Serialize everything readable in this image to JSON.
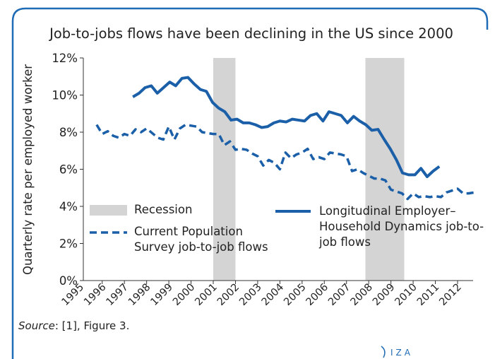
{
  "chart_data": {
    "type": "line",
    "title": "Job-to-jobs flows have been declining in the US since 2000",
    "y_label": "Quarterly rate per employed worker",
    "source_label": "Source",
    "source_text": ": [1], Figure 3.",
    "logo": "IZA",
    "xlim": [
      1995.15,
      2012.7
    ],
    "xticks": [
      1995,
      1996,
      1997,
      1998,
      1999,
      2000,
      2001,
      2002,
      2003,
      2004,
      2005,
      2006,
      2007,
      2008,
      2009,
      2010,
      2011,
      2012
    ],
    "ylim": [
      0,
      12
    ],
    "yticks": [
      {
        "value": 0,
        "label": "0%"
      },
      {
        "value": 2,
        "label": "2%"
      },
      {
        "value": 4,
        "label": "4%"
      },
      {
        "value": 6,
        "label": "6%"
      },
      {
        "value": 8,
        "label": "8%"
      },
      {
        "value": 10,
        "label": "10%"
      },
      {
        "value": 12,
        "label": "12%"
      }
    ],
    "shaded_regions": {
      "name": "Recession",
      "color": "#d4d4d4",
      "ranges": [
        [
          2001,
          2002
        ],
        [
          2007.85,
          2009.6
        ]
      ]
    },
    "series": [
      {
        "name": "Current Population Survey job-to-job flows",
        "color": "#1a5fa8",
        "dash": true,
        "x": [
          1995.75,
          1996,
          1996.25,
          1996.5,
          1996.75,
          1997,
          1997.25,
          1997.5,
          1997.75,
          1998,
          1998.25,
          1998.5,
          1998.75,
          1999,
          1999.25,
          1999.5,
          1999.75,
          2000,
          2000.25,
          2000.5,
          2000.75,
          2001,
          2001.25,
          2001.5,
          2001.75,
          2002,
          2002.25,
          2002.5,
          2002.75,
          2003,
          2003.25,
          2003.5,
          2003.75,
          2004,
          2004.25,
          2004.5,
          2004.75,
          2005,
          2005.25,
          2005.5,
          2005.75,
          2006,
          2006.25,
          2006.5,
          2006.75,
          2007,
          2007.25,
          2007.5,
          2007.75,
          2008,
          2008.25,
          2008.5,
          2008.75,
          2009,
          2009.25,
          2009.5,
          2009.75,
          2010,
          2010.25,
          2010.5,
          2010.75,
          2011,
          2011.25,
          2011.5,
          2011.75,
          2012,
          2012.25,
          2012.5,
          2012.75
        ],
        "values": [
          8.4,
          7.9,
          8.05,
          7.8,
          7.7,
          7.9,
          7.8,
          8.15,
          8.0,
          8.2,
          7.95,
          7.7,
          7.6,
          8.3,
          7.6,
          8.2,
          8.4,
          8.35,
          8.3,
          8.0,
          7.95,
          7.9,
          7.9,
          7.3,
          7.5,
          7.05,
          7.1,
          7.05,
          6.85,
          6.7,
          6.2,
          6.5,
          6.35,
          6.0,
          6.9,
          6.6,
          6.8,
          6.9,
          7.1,
          6.55,
          6.65,
          6.55,
          6.9,
          6.85,
          6.8,
          6.7,
          5.9,
          6.0,
          5.8,
          5.65,
          5.5,
          5.5,
          5.4,
          4.9,
          4.8,
          4.7,
          4.4,
          4.7,
          4.5,
          4.55,
          4.5,
          4.55,
          4.5,
          4.75,
          4.85,
          4.95,
          4.7,
          4.7,
          4.75
        ]
      },
      {
        "name": "Longitudinal Employer–Household Dynamics job-to-job flows",
        "color": "#1a5fa8",
        "dash": false,
        "x": [
          1997.38,
          1997.66,
          1997.93,
          1998.21,
          1998.48,
          1998.76,
          1999.04,
          1999.31,
          1999.59,
          1999.86,
          2000.14,
          2000.42,
          2000.69,
          2000.97,
          2001.24,
          2001.52,
          2001.8,
          2002.07,
          2002.35,
          2002.62,
          2002.9,
          2003.18,
          2003.45,
          2003.73,
          2004.0,
          2004.28,
          2004.56,
          2004.83,
          2005.11,
          2005.38,
          2005.66,
          2005.94,
          2006.21,
          2006.49,
          2006.76,
          2007.04,
          2007.32,
          2007.59,
          2007.87,
          2008.14,
          2008.42,
          2008.7,
          2008.97,
          2009.25,
          2009.52,
          2009.8,
          2010.08,
          2010.35,
          2010.63,
          2010.9,
          2011.18
        ],
        "values": [
          9.9,
          10.1,
          10.4,
          10.5,
          10.1,
          10.4,
          10.7,
          10.5,
          10.9,
          10.95,
          10.6,
          10.3,
          10.2,
          9.6,
          9.3,
          9.1,
          8.65,
          8.7,
          8.5,
          8.5,
          8.4,
          8.25,
          8.3,
          8.5,
          8.6,
          8.55,
          8.7,
          8.65,
          8.6,
          8.9,
          9.0,
          8.6,
          9.1,
          9.0,
          8.9,
          8.5,
          8.85,
          8.6,
          8.4,
          8.1,
          8.15,
          7.6,
          7.1,
          6.5,
          5.8,
          5.7,
          5.7,
          6.05,
          5.6,
          5.9,
          6.15
        ]
      }
    ]
  }
}
